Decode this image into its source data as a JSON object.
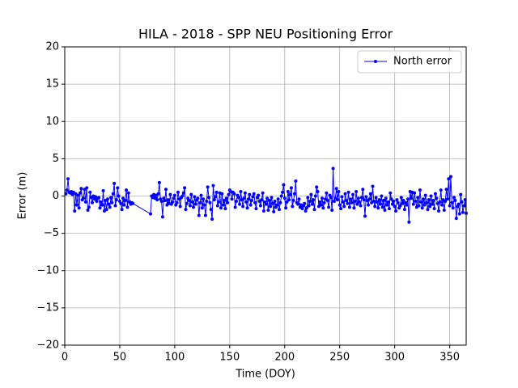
{
  "chart_data": {
    "type": "line",
    "title": "HILA - 2018 - SPP NEU Positioning Error",
    "xlabel": "Time (DOY)",
    "ylabel": "Error (m)",
    "xlim": [
      0,
      365
    ],
    "ylim": [
      -20,
      20
    ],
    "xticks": [
      0,
      50,
      100,
      150,
      200,
      250,
      300,
      350
    ],
    "yticks": [
      {
        "value": -20,
        "label": "−20"
      },
      {
        "value": -15,
        "label": "−15"
      },
      {
        "value": -10,
        "label": "−10"
      },
      {
        "value": -5,
        "label": "−5"
      },
      0,
      5,
      10,
      15,
      20
    ],
    "grid": true,
    "legend": "upper right",
    "series": [
      {
        "name": "North error",
        "color": "#0000ff",
        "x": [
          1,
          2,
          3,
          4,
          5,
          6,
          7,
          8,
          9,
          10,
          11,
          12,
          13,
          14,
          15,
          16,
          17,
          18,
          19,
          20,
          21,
          22,
          23,
          24,
          25,
          26,
          27,
          28,
          29,
          30,
          31,
          32,
          33,
          34,
          35,
          36,
          37,
          38,
          39,
          40,
          41,
          42,
          43,
          44,
          45,
          46,
          47,
          48,
          49,
          50,
          51,
          52,
          53,
          54,
          55,
          56,
          57,
          58,
          59,
          60,
          61,
          62,
          78,
          79,
          80,
          81,
          82,
          83,
          84,
          85,
          86,
          87,
          88,
          89,
          90,
          91,
          92,
          93,
          94,
          95,
          96,
          97,
          98,
          99,
          100,
          101,
          102,
          103,
          104,
          105,
          106,
          107,
          108,
          109,
          110,
          111,
          112,
          113,
          114,
          115,
          116,
          117,
          118,
          119,
          120,
          121,
          122,
          123,
          124,
          125,
          126,
          127,
          128,
          129,
          130,
          131,
          132,
          133,
          134,
          135,
          136,
          137,
          138,
          139,
          140,
          141,
          142,
          143,
          144,
          145,
          146,
          147,
          148,
          149,
          150,
          151,
          152,
          153,
          154,
          155,
          156,
          157,
          158,
          159,
          160,
          161,
          162,
          163,
          164,
          165,
          166,
          167,
          168,
          169,
          170,
          171,
          172,
          173,
          174,
          175,
          176,
          177,
          178,
          179,
          180,
          181,
          182,
          183,
          184,
          185,
          186,
          187,
          188,
          189,
          190,
          191,
          192,
          193,
          194,
          195,
          196,
          197,
          198,
          199,
          200,
          201,
          202,
          203,
          204,
          205,
          206,
          207,
          208,
          209,
          210,
          211,
          212,
          213,
          214,
          215,
          216,
          217,
          218,
          219,
          220,
          221,
          222,
          223,
          224,
          225,
          226,
          227,
          228,
          229,
          230,
          231,
          232,
          233,
          234,
          235,
          236,
          237,
          238,
          239,
          240,
          241,
          242,
          243,
          244,
          245,
          246,
          247,
          248,
          249,
          250,
          251,
          252,
          253,
          254,
          255,
          256,
          257,
          258,
          259,
          260,
          261,
          262,
          263,
          264,
          265,
          266,
          267,
          268,
          269,
          270,
          271,
          272,
          273,
          274,
          275,
          276,
          277,
          278,
          279,
          280,
          281,
          282,
          283,
          284,
          285,
          286,
          287,
          288,
          289,
          290,
          291,
          292,
          293,
          294,
          295,
          296,
          297,
          298,
          299,
          300,
          301,
          302,
          303,
          304,
          305,
          306,
          307,
          308,
          309,
          310,
          311,
          312,
          313,
          314,
          315,
          316,
          317,
          318,
          319,
          320,
          321,
          322,
          323,
          324,
          325,
          326,
          327,
          328,
          329,
          330,
          331,
          332,
          333,
          334,
          335,
          336,
          337,
          338,
          339,
          340,
          341,
          342,
          343,
          344,
          345,
          346,
          347,
          348,
          349,
          350,
          351,
          352,
          353,
          354,
          355,
          356,
          357,
          358,
          359,
          360,
          361,
          362,
          363,
          364,
          365
        ],
        "values": [
          0.3,
          0.8,
          2.3,
          0.5,
          0.4,
          0.6,
          0.2,
          0.5,
          -2.0,
          0.3,
          -1.2,
          0.1,
          -1.6,
          0.4,
          1.0,
          -0.5,
          -0.3,
          0.9,
          -0.8,
          1.1,
          -1.9,
          -1.5,
          0.5,
          -0.2,
          -0.9,
          0.0,
          -0.4,
          -0.1,
          -0.7,
          -0.3,
          -0.2,
          -1.6,
          -0.8,
          -1.2,
          0.7,
          -2.0,
          -0.6,
          -1.8,
          -0.4,
          -1.1,
          -1.5,
          -0.2,
          -0.9,
          0.3,
          1.7,
          -1.3,
          -0.5,
          1.1,
          0.0,
          -0.7,
          -1.0,
          -1.8,
          -0.3,
          -1.2,
          -0.6,
          0.8,
          -1.5,
          0.4,
          -0.8,
          -1.1,
          -0.9,
          -1.0,
          -2.4,
          0.0,
          -0.2,
          0.2,
          -0.3,
          0.1,
          -0.5,
          0.3,
          1.8,
          -0.4,
          -0.7,
          -2.8,
          -0.3,
          -0.6,
          0.9,
          -1.2,
          -0.5,
          -1.0,
          0.2,
          -1.1,
          -0.8,
          -0.3,
          0.1,
          -1.2,
          -0.9,
          0.5,
          -0.4,
          -1.4,
          -0.2,
          0.0,
          0.4,
          1.1,
          -1.8,
          -1.0,
          -0.3,
          -0.6,
          -1.3,
          0.2,
          -0.8,
          -1.5,
          -0.1,
          -1.1,
          -0.5,
          -0.3,
          -2.6,
          -0.9,
          0.1,
          -1.6,
          -0.4,
          -1.2,
          -2.6,
          -0.7,
          1.2,
          -0.2,
          -0.9,
          -1.8,
          -3.1,
          1.4,
          -0.5,
          -0.1,
          0.5,
          -1.3,
          -0.8,
          0.4,
          -1.6,
          0.3,
          -1.2,
          -0.6,
          -1.7,
          -0.3,
          -0.9,
          0.2,
          0.8,
          0.6,
          -0.4,
          0.5,
          0.3,
          -1.5,
          -0.7,
          0.1,
          -0.2,
          -1.1,
          0.6,
          -0.5,
          -1.4,
          -0.3,
          0.4,
          -0.8,
          -1.6,
          -0.4,
          0.2,
          -1.2,
          -0.6,
          -0.1,
          0.3,
          -0.9,
          -1.7,
          -0.2,
          0.1,
          -0.7,
          -1.3,
          -0.5,
          0.4,
          -2.0,
          -0.8,
          -1.1,
          -0.3,
          -1.9,
          -0.6,
          -1.4,
          -0.2,
          -1.0,
          -2.1,
          -0.7,
          -1.5,
          -1.2,
          -0.4,
          -1.8,
          -0.9,
          0.0,
          0.5,
          1.5,
          -0.3,
          -1.6,
          -0.8,
          0.6,
          -0.5,
          0.2,
          1.1,
          -1.4,
          -0.6,
          0.3,
          2.0,
          -0.9,
          -1.1,
          -0.4,
          -1.5,
          -1.2,
          -1.7,
          -1.3,
          -1.0,
          -2.0,
          -1.6,
          -0.2,
          -1.3,
          -0.7,
          0.2,
          -1.1,
          -0.5,
          -1.8,
          0.0,
          1.2,
          0.6,
          -1.4,
          -0.8,
          -1.2,
          -0.3,
          -1.6,
          -0.9,
          -0.4,
          0.4,
          -0.6,
          -1.5,
          0.1,
          -0.2,
          -1.9,
          3.7,
          -0.7,
          -0.3,
          1.0,
          -0.5,
          0.6,
          -1.2,
          -1.7,
          -0.1,
          -0.8,
          -1.4,
          0.3,
          -0.6,
          -1.0,
          0.5,
          -1.5,
          -0.4,
          -0.9,
          0.2,
          -1.6,
          -0.7,
          0.6,
          -1.1,
          -0.3,
          -0.8,
          -1.3,
          -0.2,
          0.9,
          -0.5,
          -2.7,
          -0.1,
          -0.6,
          -1.2,
          -0.4,
          0.3,
          -0.9,
          1.3,
          -0.7,
          -1.4,
          -0.2,
          -0.8,
          -1.6,
          -0.5,
          -1.1,
          0.0,
          -1.5,
          -0.6,
          -1.9,
          -0.3,
          -1.2,
          -0.8,
          -1.7,
          0.4,
          -0.4,
          -1.1,
          -0.7,
          -1.4,
          -2.0,
          -0.5,
          -0.9,
          -1.6,
          -1.3,
          -0.2,
          -1.0,
          -0.6,
          -1.8,
          -0.9,
          -1.2,
          -0.4,
          -3.5,
          0.6,
          -0.3,
          0.5,
          -1.1,
          0.4,
          -0.7,
          -1.5,
          -0.2,
          -1.3,
          0.8,
          -0.8,
          -1.6,
          -0.4,
          -1.2,
          0.1,
          -0.9,
          -1.8,
          -0.5,
          -1.4,
          0.0,
          -1.1,
          -0.6,
          -1.7,
          0.3,
          -0.3,
          -1.0,
          -2.0,
          -0.8,
          0.8,
          -1.2,
          -0.5,
          -1.9,
          -0.7,
          0.9,
          -0.4,
          2.3,
          -1.3,
          2.6,
          -0.9,
          -1.6,
          -0.2,
          -0.6,
          -3.0,
          -1.4,
          -1.1,
          -2.4,
          0.2,
          -0.8,
          -2.2,
          -1.3,
          -0.5,
          -2.3
        ]
      }
    ]
  }
}
